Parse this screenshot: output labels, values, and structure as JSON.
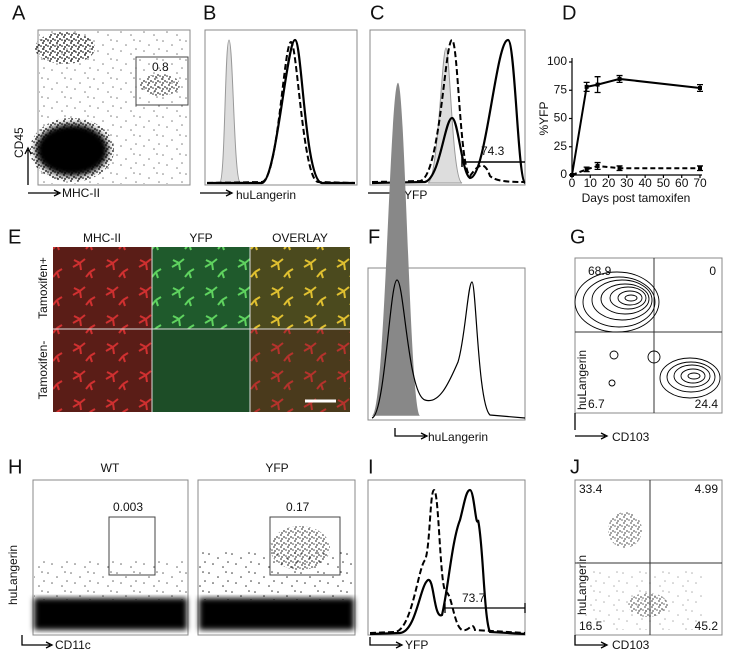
{
  "panels": [
    {
      "label": "A",
      "y_axis": "CD45",
      "x_axis": "MHC-II",
      "gates": [
        "0.8"
      ]
    },
    {
      "label": "B",
      "x_axis": "huLangerin"
    },
    {
      "label": "C",
      "x_axis": "YFP",
      "gates": [
        "74.3"
      ]
    },
    {
      "label": "D"
    },
    {
      "label": "E",
      "columns": [
        "MHC-II",
        "YFP",
        "OVERLAY"
      ],
      "rows": [
        "Tamoxifen+",
        "Tamoxifen-"
      ]
    },
    {
      "label": "F",
      "x_axis": "huLangerin"
    },
    {
      "label": "G",
      "y_axis": "huLangerin",
      "x_axis": "CD103",
      "quadrants": [
        "68.9",
        "0",
        "6.7",
        "24.4"
      ]
    },
    {
      "label": "H",
      "plots": [
        "WT",
        "YFP"
      ],
      "gates": [
        "0.003",
        "0.17"
      ],
      "y_axis": "huLangerin",
      "x_axis": "CD11c"
    },
    {
      "label": "I",
      "x_axis": "YFP",
      "gates": [
        "73.7"
      ]
    },
    {
      "label": "J",
      "y_axis": "huLangerin",
      "x_axis": "CD103",
      "quadrants": [
        "33.4",
        "4.99",
        "16.5",
        "45.2"
      ]
    }
  ],
  "chart_data": {
    "type": "line",
    "x_label": "Days post tamoxifen",
    "y_label": "%YFP",
    "xlim": [
      0,
      70
    ],
    "xticks": [
      0,
      10,
      20,
      30,
      40,
      50,
      60,
      70
    ],
    "ylim": [
      0,
      100
    ],
    "yticks": [
      0,
      25,
      50,
      75,
      100
    ],
    "series": [
      {
        "color": "#000000",
        "dash": false,
        "x": [
          0,
          8,
          14,
          26,
          70
        ],
        "values": [
          0,
          78,
          80,
          85,
          77
        ],
        "errors": [
          0,
          4,
          7,
          3,
          3
        ]
      },
      {
        "color": "#000000",
        "dash": true,
        "x": [
          0,
          8,
          14,
          26,
          70
        ],
        "values": [
          0,
          5,
          8,
          6,
          6
        ],
        "errors": [
          0,
          2,
          3,
          2,
          2
        ]
      }
    ]
  }
}
